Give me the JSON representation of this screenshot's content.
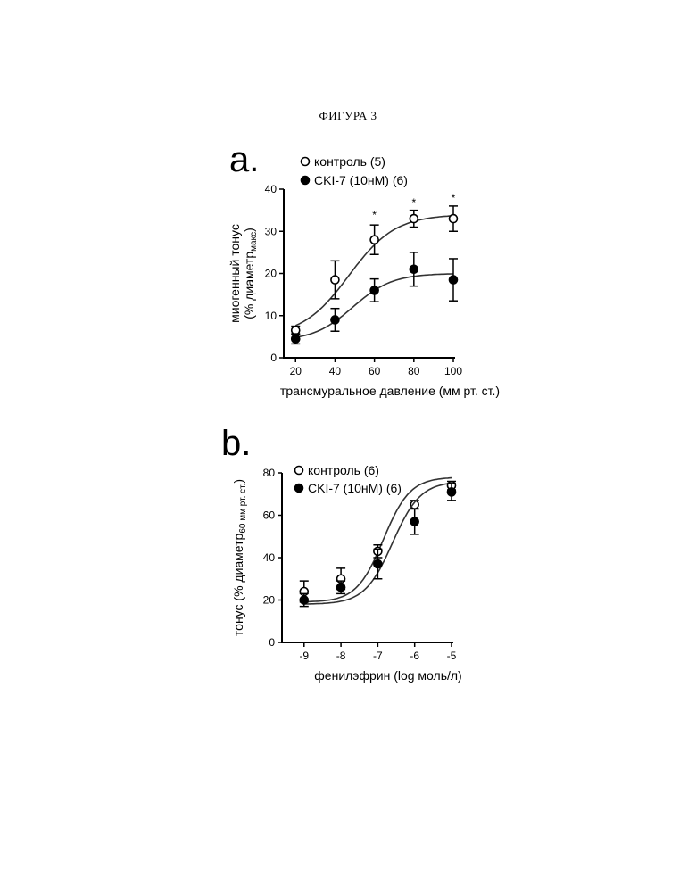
{
  "figure_title": "ФИГУРА 3",
  "chart_data": [
    {
      "panel": "a.",
      "type": "line",
      "xlabel": "трансмуральное давление (мм рт. ст.)",
      "ylabel_line1": "миогенный тонус",
      "ylabel_line2": "(% диаметр",
      "ylabel_sub": "макс",
      "ylabel_close": ")",
      "x_ticks": [
        "20",
        "40",
        "60",
        "80",
        "100"
      ],
      "y_ticks": [
        "0",
        "10",
        "20",
        "30",
        "40"
      ],
      "xlim": [
        14,
        100
      ],
      "ylim": [
        0,
        40
      ],
      "x_log": false,
      "legend_position": "top-left",
      "series": [
        {
          "name": "контроль (5)",
          "marker": "open-circle",
          "x": [
            20,
            40,
            60,
            80,
            100
          ],
          "y": [
            6.5,
            18.5,
            28,
            33,
            33
          ],
          "err": [
            1,
            4.5,
            3.5,
            2,
            3
          ],
          "fit": {
            "bottom": 5,
            "top": 34,
            "x50": 47,
            "slope": 0.085
          }
        },
        {
          "name": "CKI-7 (10нМ) (6)",
          "marker": "filled-circle",
          "x": [
            20,
            40,
            60,
            80,
            100
          ],
          "y": [
            4.5,
            9,
            16,
            21,
            18.5
          ],
          "err": [
            1.2,
            2.7,
            2.7,
            4,
            5
          ],
          "fit": {
            "bottom": 4,
            "top": 20,
            "x50": 49,
            "slope": 0.1
          }
        }
      ],
      "annotations": [
        {
          "text": "*",
          "x": 60,
          "y": 33
        },
        {
          "text": "*",
          "x": 80,
          "y": 36
        },
        {
          "text": "*",
          "x": 100,
          "y": 37
        }
      ]
    },
    {
      "panel": "b.",
      "type": "line",
      "xlabel": "фенилэфрин (log моль/л)",
      "ylabel_line1": "тонус (% диаметр",
      "ylabel_sub": "60 мм рт. ст.",
      "ylabel_close": ")",
      "x_ticks": [
        "-9",
        "-8",
        "-7",
        "-6",
        "-5"
      ],
      "y_ticks": [
        "0",
        "20",
        "40",
        "60",
        "80"
      ],
      "xlim": [
        -9.6,
        -5
      ],
      "ylim": [
        0,
        80
      ],
      "legend_position": "top-left",
      "series": [
        {
          "name": "контроль (6)",
          "marker": "open-circle",
          "x": [
            -9,
            -8,
            -7,
            -6,
            -5
          ],
          "y": [
            24,
            30,
            43,
            65,
            74
          ],
          "err": [
            5,
            5,
            3,
            2,
            2
          ],
          "fit": {
            "bottom": 19,
            "top": 78,
            "x50": -6.85,
            "slope": 1.2
          }
        },
        {
          "name": "CKI-7 (10нМ) (6)",
          "marker": "filled-circle",
          "x": [
            -9,
            -8,
            -7,
            -6,
            -5
          ],
          "y": [
            20,
            26,
            37,
            57,
            71
          ],
          "err": [
            3,
            3,
            7,
            6,
            4
          ],
          "fit": {
            "bottom": 18,
            "top": 76,
            "x50": -6.6,
            "slope": 1.15
          }
        }
      ]
    }
  ]
}
